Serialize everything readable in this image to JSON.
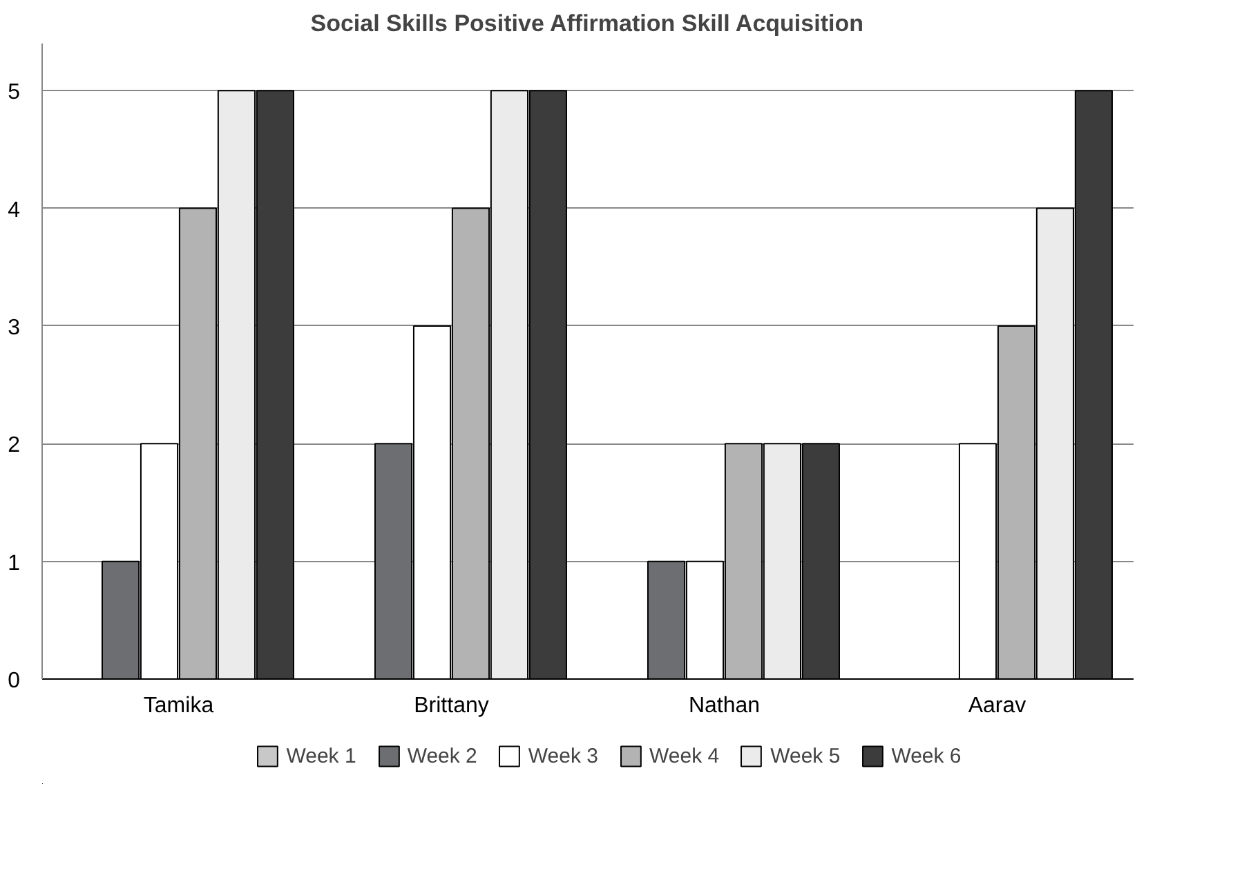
{
  "chart_data": {
    "type": "bar",
    "title": "Social Skills Positive Affirmation Skill Acquisition",
    "categories": [
      "Tamika",
      "Brittany",
      "Nathan",
      "Aarav"
    ],
    "series": [
      {
        "name": "Week 1",
        "color": "#c8c8c8",
        "values": [
          0,
          0,
          0,
          0
        ]
      },
      {
        "name": "Week 2",
        "color": "#6d6e71",
        "values": [
          1,
          2,
          1,
          0
        ]
      },
      {
        "name": "Week 3",
        "color": "#ffffff",
        "values": [
          2,
          3,
          1,
          2
        ]
      },
      {
        "name": "Week 4",
        "color": "#b3b3b3",
        "values": [
          4,
          4,
          2,
          3
        ]
      },
      {
        "name": "Week 5",
        "color": "#ebebeb",
        "values": [
          5,
          5,
          2,
          4
        ]
      },
      {
        "name": "Week 6",
        "color": "#3c3c3c",
        "values": [
          5,
          5,
          2,
          5
        ]
      }
    ],
    "ylim": [
      0,
      5.4
    ],
    "yticks": [
      0,
      1,
      2,
      3,
      4,
      5
    ],
    "grid": "y",
    "legend": "bottom"
  }
}
